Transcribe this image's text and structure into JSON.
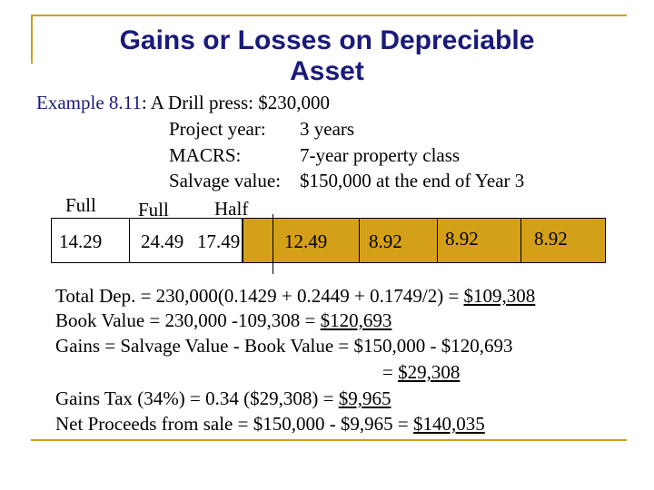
{
  "slide": {
    "title_line1": "Gains or Losses on Depreciable",
    "title_line2": "Asset",
    "example": {
      "label": "Example 8.11",
      "text": ": A Drill press: $230,000",
      "rows": [
        {
          "key": "Project year:",
          "value": "3 years"
        },
        {
          "key": "MACRS:",
          "value": "7-year property class"
        },
        {
          "key": "Salvage value:",
          "value": "$150,000 at the end of Year 3"
        }
      ]
    },
    "header_labels": [
      "Full",
      "Full",
      "Half"
    ],
    "rates": [
      "14.29",
      "24.49",
      "17.49",
      "12.49",
      "8.92",
      "8.92",
      "8.92"
    ],
    "colors": {
      "accent": "#c9a21a",
      "fill": "#d4a017",
      "title": "#1a1a7a"
    },
    "calc": {
      "line1": "Total Dep. = 230,000(0.1429 + 0.2449 + 0.1749/2) = ",
      "line1_result": "$109,308",
      "line2": "Book Value = 230,000 -109,308 = ",
      "line2_result": "$120,693",
      "line3": "Gains = Salvage Value - Book Value = $150,000 - $120,693",
      "line4": "= ",
      "line4_result": "$29,308",
      "line5": "Gains Tax (34%) = 0.34 ($29,308) = ",
      "line5_result": "$9,965",
      "line6": "Net Proceeds from sale = $150,000 - $9,965 = ",
      "line6_result": "$140,035"
    }
  }
}
